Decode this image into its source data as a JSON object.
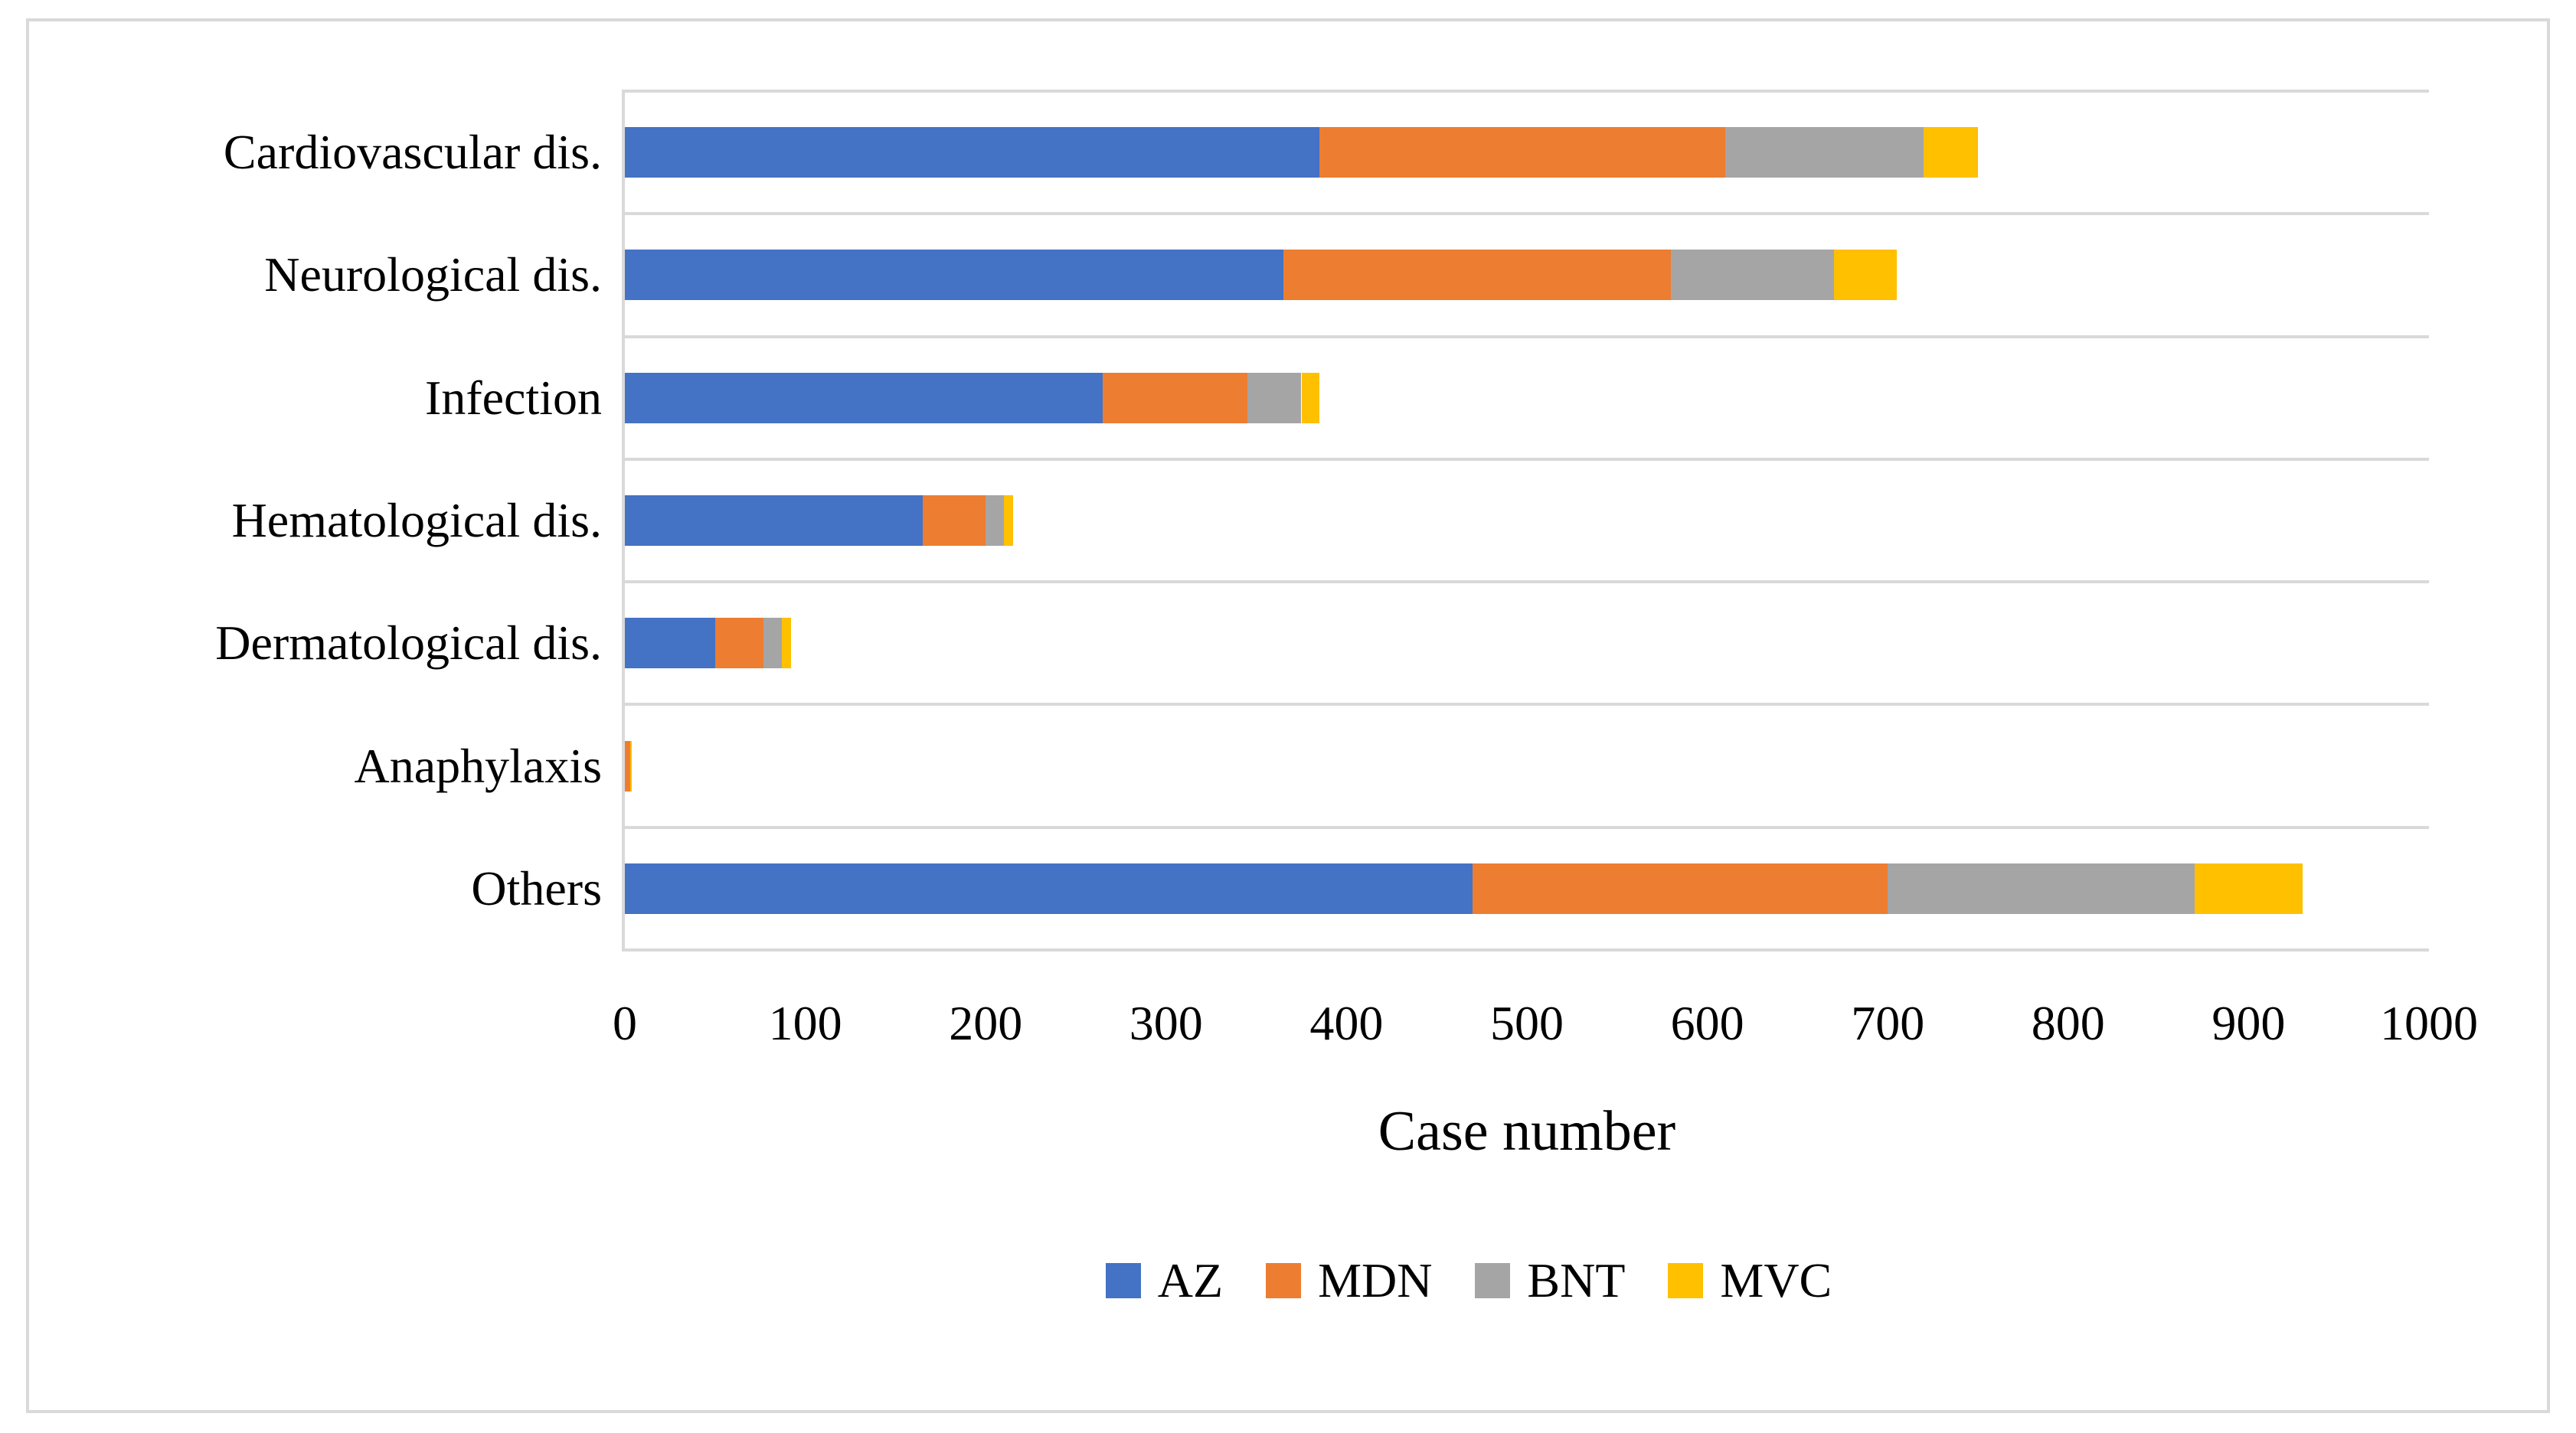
{
  "figure": {
    "background": "#FFFFFF",
    "border_color": "#D9D9D9"
  },
  "chart_data": {
    "type": "bar",
    "orientation": "horizontal",
    "stacked": true,
    "title": "",
    "xlabel": "Case number",
    "ylabel": "",
    "xlim": [
      0,
      1000
    ],
    "xticks": [
      0,
      100,
      200,
      300,
      400,
      500,
      600,
      700,
      800,
      900,
      1000
    ],
    "grid": "horizontal light-gray separator lines between category rows; no vertical gridlines",
    "legend_position": "bottom",
    "axis_color": "#D9D9D9",
    "categories": [
      "Cardiovascular dis.",
      "Neurological dis.",
      "Infection",
      "Hematological dis.",
      "Dermatological dis.",
      "Anaphylaxis",
      "Others"
    ],
    "series": [
      {
        "name": "AZ",
        "color": "#4472C4",
        "values": [
          385,
          365,
          265,
          165,
          50,
          0,
          470
        ]
      },
      {
        "name": "MDN",
        "color": "#ED7D31",
        "values": [
          225,
          215,
          80,
          35,
          27,
          3,
          230
        ]
      },
      {
        "name": "BNT",
        "color": "#A5A5A5",
        "values": [
          110,
          90,
          30,
          10,
          10,
          0,
          170
        ]
      },
      {
        "name": "MVC",
        "color": "#FFC000",
        "values": [
          30,
          35,
          10,
          5,
          5,
          1,
          60
        ]
      }
    ],
    "totals_approx": [
      750,
      705,
      385,
      215,
      92,
      4,
      930
    ]
  }
}
